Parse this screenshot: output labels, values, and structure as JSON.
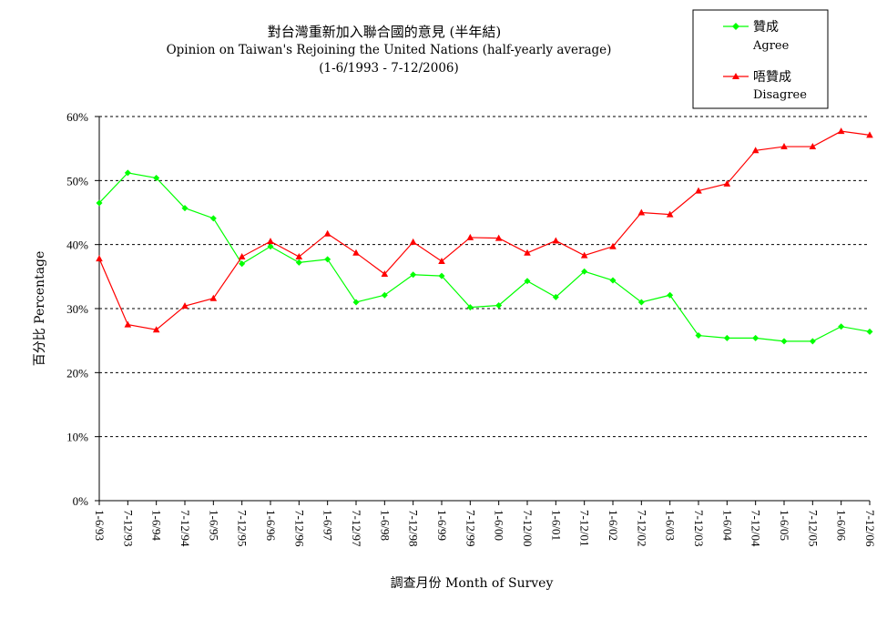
{
  "chart_data": {
    "type": "line",
    "title": "對台灣重新加入聯合國的意見 (半年結)",
    "subtitle": "Opinion on Taiwan's Rejoining the United Nations  (half-yearly average)",
    "period": "(1-6/1993 - 7-12/2006)",
    "xlabel": "調查月份 Month of Survey",
    "ylabel": "百分比 Percentage",
    "ylim": [
      0,
      60
    ],
    "yticks": [
      "0%",
      "10%",
      "20%",
      "30%",
      "40%",
      "50%",
      "60%"
    ],
    "grid": true,
    "legend_position": "top-right",
    "categories": [
      "1-6/93",
      "7-12/93",
      "1-6/94",
      "7-12/94",
      "1-6/95",
      "7-12/95",
      "1-6/96",
      "7-12/96",
      "1-6/97",
      "7-12/97",
      "1-6/98",
      "7-12/98",
      "1-6/99",
      "7-12/99",
      "1-6/00",
      "7-12/00",
      "1-6/01",
      "7-12/01",
      "1-6/02",
      "7-12/02",
      "1-6/03",
      "7-12/03",
      "1-6/04",
      "7-12/04",
      "1-6/05",
      "7-12/05",
      "1-6/06",
      "7-12/06"
    ],
    "series": [
      {
        "name": "贊成",
        "name_en": "Agree",
        "color": "#00ff00",
        "marker": "diamond",
        "values": [
          46.5,
          51.2,
          50.4,
          45.7,
          44.1,
          37.0,
          39.7,
          37.2,
          37.7,
          31.0,
          32.1,
          35.3,
          35.1,
          30.2,
          30.5,
          34.3,
          31.8,
          35.8,
          34.4,
          31.0,
          32.1,
          25.8,
          25.4,
          25.4,
          24.9,
          24.9,
          27.2,
          26.4
        ]
      },
      {
        "name": "唔贊成",
        "name_en": "Disagree",
        "color": "#ff0000",
        "marker": "triangle",
        "values": [
          37.8,
          27.5,
          26.7,
          30.4,
          31.6,
          38.1,
          40.5,
          38.1,
          41.7,
          38.7,
          35.4,
          40.4,
          37.4,
          41.1,
          41.0,
          38.7,
          40.6,
          38.3,
          39.7,
          45.0,
          44.7,
          48.4,
          49.5,
          54.7,
          55.3,
          55.3,
          57.7,
          57.1
        ]
      }
    ]
  }
}
